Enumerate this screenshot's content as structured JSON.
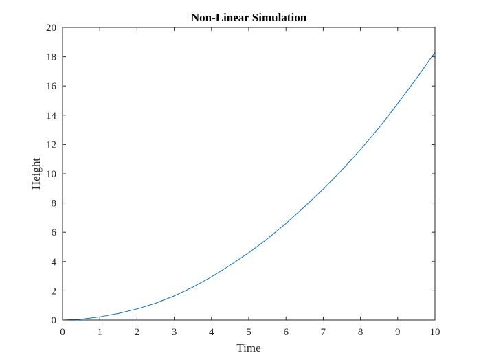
{
  "chart_data": {
    "type": "line",
    "title": "Non-Linear Simulation",
    "xlabel": "Time",
    "ylabel": "Height",
    "xlim": [
      0,
      10
    ],
    "ylim": [
      0,
      20
    ],
    "xticks": [
      "0",
      "1",
      "2",
      "3",
      "4",
      "5",
      "6",
      "7",
      "8",
      "9",
      "10"
    ],
    "yticks": [
      "0",
      "2",
      "4",
      "6",
      "8",
      "10",
      "12",
      "14",
      "16",
      "18",
      "20"
    ],
    "grid": false,
    "series": [
      {
        "color": "#0072bd",
        "x": [
          0,
          0.5,
          1,
          1.5,
          2,
          2.5,
          3,
          3.5,
          4,
          4.5,
          5,
          5.5,
          6,
          6.5,
          7,
          7.5,
          8,
          8.5,
          9,
          9.5,
          10
        ],
        "y": [
          0,
          0.06,
          0.22,
          0.45,
          0.76,
          1.15,
          1.65,
          2.25,
          2.95,
          3.75,
          4.6,
          5.55,
          6.6,
          7.75,
          8.95,
          10.25,
          11.65,
          13.15,
          14.8,
          16.5,
          18.3
        ]
      }
    ]
  }
}
